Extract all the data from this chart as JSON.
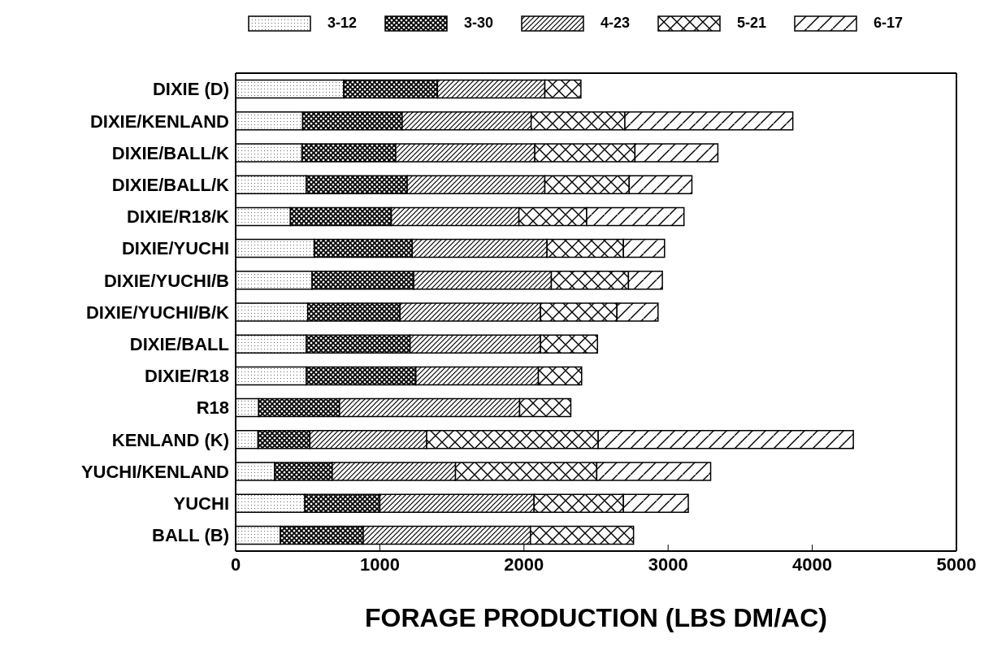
{
  "chart_data": {
    "type": "bar",
    "orientation": "horizontal",
    "stacked": true,
    "xlabel": "FORAGE PRODUCTION (LBS DM/AC)",
    "categories": [
      "DIXIE (D)",
      "DIXIE/KENLAND",
      "DIXIE/BALL/K",
      "DIXIE/BALL/K",
      "DIXIE/R18/K",
      "DIXIE/YUCHI",
      "DIXIE/YUCHI/B",
      "DIXIE/YUCHI/B/K",
      "DIXIE/BALL",
      "DIXIE/R18",
      "R18",
      "KENLAND (K)",
      "YUCHI/KENLAND",
      "YUCHI",
      "BALL (B)"
    ],
    "series": [
      {
        "name": "3-12",
        "color": "#000000",
        "values": [
          750,
          465,
          460,
          490,
          380,
          545,
          530,
          500,
          490,
          490,
          160,
          155,
          270,
          480,
          310
        ]
      },
      {
        "name": "3-30",
        "color": "#000000",
        "values": [
          650,
          690,
          650,
          700,
          700,
          680,
          705,
          640,
          720,
          760,
          560,
          360,
          400,
          520,
          575
        ]
      },
      {
        "name": "4-23",
        "color": "#000000",
        "values": [
          745,
          895,
          965,
          955,
          885,
          935,
          955,
          975,
          905,
          850,
          1250,
          810,
          855,
          1070,
          1160
        ]
      },
      {
        "name": "5-21",
        "color": "#000000",
        "values": [
          250,
          650,
          695,
          585,
          470,
          530,
          535,
          530,
          395,
          300,
          355,
          1190,
          980,
          620,
          715
        ]
      },
      {
        "name": "6-17",
        "color": "#000000",
        "values": [
          0,
          1165,
          575,
          435,
          675,
          285,
          235,
          285,
          0,
          0,
          0,
          1770,
          790,
          450,
          0
        ]
      }
    ],
    "xlim": [
      0,
      5000
    ],
    "xticks": [
      0,
      1000,
      2000,
      3000,
      4000,
      5000
    ],
    "grid": false,
    "legend": "top"
  }
}
